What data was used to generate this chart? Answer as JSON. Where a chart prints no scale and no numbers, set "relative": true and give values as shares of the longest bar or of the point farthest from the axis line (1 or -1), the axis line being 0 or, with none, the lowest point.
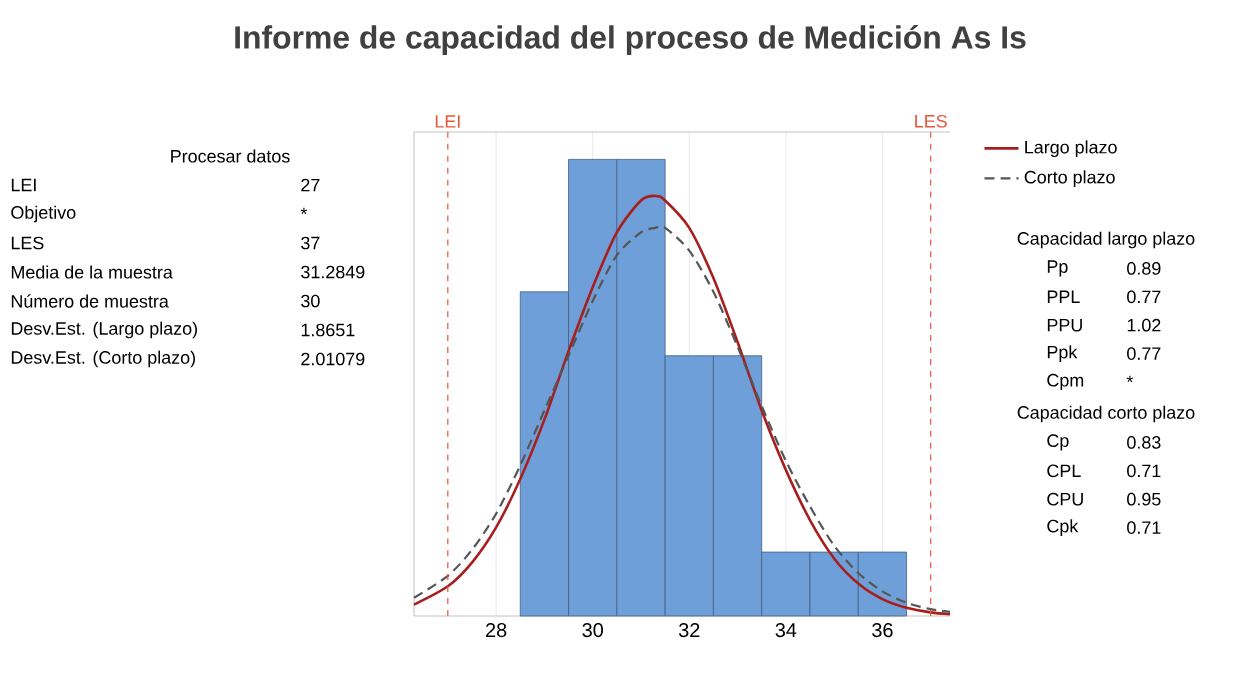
{
  "chart_data": [
    {
      "type": "histogram",
      "title": "Informe de capacidad del proceso de Medición As Is",
      "relative": true,
      "xlim": [
        26.3,
        37.4
      ],
      "xticks": [
        28,
        30,
        32,
        34,
        36
      ],
      "grid": "x",
      "legend": "right",
      "series": [
        {
          "type": "histogram",
          "color": "#6f9fd8",
          "bins": [
            28.5,
            29.5,
            30.5,
            31.5,
            32.5,
            33.5,
            34.5,
            35.5,
            36.5
          ],
          "values": [
            0.71,
            1,
            1,
            0.57,
            0.57,
            0.14,
            0.14,
            0.14
          ]
        },
        {
          "type": "line",
          "name": "Largo plazo",
          "color": "#a81e1e",
          "line_style": "solid",
          "x": [
            26.3,
            27,
            27.5,
            28,
            28.5,
            29,
            29.5,
            30,
            30.5,
            31,
            31.3,
            31.5,
            32,
            32.5,
            33,
            33.5,
            34,
            34.5,
            35,
            35.5,
            36,
            36.5,
            37,
            37.4
          ],
          "values": [
            0.025,
            0.065,
            0.117,
            0.194,
            0.3,
            0.43,
            0.58,
            0.72,
            0.84,
            0.91,
            0.92,
            0.91,
            0.85,
            0.74,
            0.6,
            0.45,
            0.32,
            0.21,
            0.126,
            0.071,
            0.037,
            0.018,
            0.008,
            0.004
          ]
        },
        {
          "type": "line",
          "name": "Corto plazo",
          "color": "#555555",
          "line_style": "dashed",
          "x": [
            26.3,
            27,
            27.5,
            28,
            28.5,
            29,
            29.5,
            30,
            30.5,
            31,
            31.3,
            31.5,
            32,
            32.5,
            33,
            33.5,
            34,
            34.5,
            35,
            35.5,
            36,
            36.5,
            37,
            37.4
          ],
          "values": [
            0.04,
            0.088,
            0.145,
            0.224,
            0.33,
            0.45,
            0.57,
            0.69,
            0.79,
            0.84,
            0.85,
            0.85,
            0.8,
            0.71,
            0.59,
            0.46,
            0.34,
            0.24,
            0.154,
            0.094,
            0.054,
            0.029,
            0.015,
            0.009
          ]
        }
      ],
      "ref_lines": [
        {
          "axis": "x",
          "value": 27,
          "label": "LEI",
          "color": "#e8553a",
          "line_style": "dashed"
        },
        {
          "axis": "x",
          "value": 37,
          "label": "LES",
          "color": "#e8553a",
          "line_style": "dashed"
        }
      ]
    },
    {
      "type": "other",
      "title": "Procesar datos",
      "annotations": [
        "LEI",
        "27",
        "Objetivo",
        "*",
        "LES",
        "37",
        "Media de la muestra",
        "31.2849",
        "Número de muestra",
        "30",
        "Desv.Est. (Largo plazo)",
        "1.8651",
        "Desv.Est. (Corto plazo)",
        "2.01079"
      ]
    },
    {
      "type": "other",
      "title": "Capacidad largo plazo",
      "annotations": [
        "Pp",
        "0.89",
        "PPL",
        "0.77",
        "PPU",
        "1.02",
        "Ppk",
        "0.77",
        "Cpm",
        "*"
      ]
    },
    {
      "type": "other",
      "title": "Capacidad corto plazo",
      "annotations": [
        "Cp",
        "0.83",
        "CPL",
        "0.71",
        "CPU",
        "0.95",
        "Cpk",
        "0.71"
      ]
    }
  ]
}
